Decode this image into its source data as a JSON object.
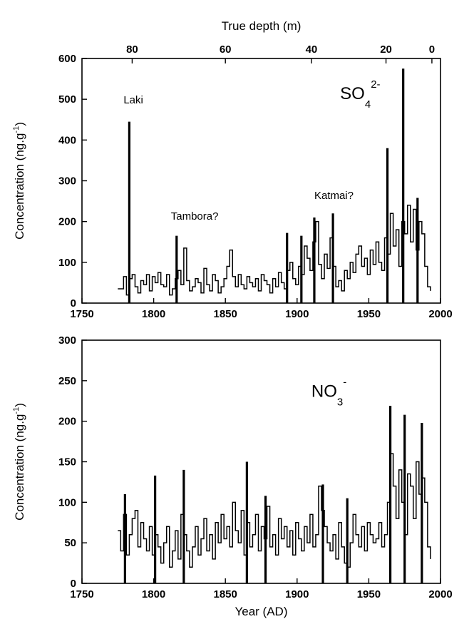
{
  "chart_data": [
    {
      "type": "line",
      "panel": "top",
      "xlim": [
        1750,
        2000
      ],
      "ylim": [
        0,
        600
      ],
      "x_ticks": [
        1750,
        1800,
        1850,
        1900,
        1950,
        2000
      ],
      "y_ticks": [
        0,
        100,
        200,
        300,
        400,
        500,
        600
      ],
      "ylabel_parts": {
        "main": "Concentration (ng.g",
        "sup": "-1",
        "end": ")"
      },
      "top_axis": {
        "title": "True depth (m)",
        "ticks": [
          {
            "label": "80",
            "year": 1785
          },
          {
            "label": "60",
            "year": 1850
          },
          {
            "label": "40",
            "year": 1910
          },
          {
            "label": "20",
            "year": 1962
          },
          {
            "label": "0",
            "year": 1994
          }
        ]
      },
      "species": {
        "main": "SO",
        "sub": "4",
        "sup": "2-"
      },
      "species_anchor": {
        "x": 1930,
        "y": 500
      },
      "annotations": [
        {
          "text": "Laki",
          "x": 1779,
          "y": 490
        },
        {
          "text": "Tambora?",
          "x": 1812,
          "y": 205
        },
        {
          "text": "Katmai?",
          "x": 1912,
          "y": 255
        }
      ],
      "spikes": [
        {
          "x": 1783,
          "y": 445
        },
        {
          "x": 1816,
          "y": 165
        },
        {
          "x": 1893,
          "y": 172
        },
        {
          "x": 1903,
          "y": 165
        },
        {
          "x": 1912,
          "y": 210
        },
        {
          "x": 1925,
          "y": 220
        },
        {
          "x": 1963,
          "y": 380
        },
        {
          "x": 1974,
          "y": 575
        },
        {
          "x": 1984,
          "y": 258
        }
      ],
      "series": [
        {
          "x": [
            1775,
            1779,
            1781,
            1783,
            1785,
            1787,
            1789,
            1791,
            1793,
            1795,
            1797,
            1799,
            1801,
            1803,
            1805,
            1807,
            1809,
            1811,
            1813,
            1815,
            1817,
            1819,
            1821,
            1823,
            1825,
            1827,
            1829,
            1831,
            1833,
            1835,
            1837,
            1839,
            1841,
            1843,
            1845,
            1847,
            1849,
            1851,
            1853,
            1855,
            1857,
            1859,
            1861,
            1863,
            1865,
            1867,
            1869,
            1871,
            1873,
            1875,
            1877,
            1879,
            1881,
            1883,
            1885,
            1887,
            1889,
            1891,
            1893,
            1895,
            1897,
            1899,
            1901,
            1903,
            1905,
            1907,
            1909,
            1911,
            1913,
            1915,
            1917,
            1919,
            1921,
            1923,
            1925,
            1927,
            1929,
            1931,
            1933,
            1935,
            1937,
            1939,
            1941,
            1943,
            1945,
            1947,
            1949,
            1951,
            1953,
            1955,
            1957,
            1959,
            1961,
            1963,
            1965,
            1967,
            1969,
            1971,
            1973,
            1975,
            1977,
            1979,
            1981,
            1983,
            1985,
            1987,
            1989,
            1991,
            1993
          ],
          "y": [
            35,
            65,
            20,
            60,
            70,
            40,
            25,
            55,
            45,
            70,
            30,
            65,
            50,
            75,
            45,
            40,
            70,
            20,
            35,
            60,
            80,
            45,
            135,
            55,
            30,
            40,
            60,
            50,
            25,
            85,
            45,
            30,
            70,
            55,
            25,
            40,
            60,
            90,
            130,
            65,
            40,
            70,
            45,
            35,
            65,
            50,
            40,
            60,
            30,
            70,
            55,
            45,
            25,
            60,
            40,
            75,
            50,
            35,
            80,
            100,
            60,
            45,
            90,
            70,
            140,
            110,
            80,
            150,
            200,
            95,
            60,
            120,
            85,
            160,
            90,
            40,
            55,
            30,
            80,
            60,
            100,
            75,
            120,
            140,
            90,
            110,
            70,
            130,
            95,
            150,
            100,
            80,
            160,
            120,
            220,
            140,
            180,
            90,
            200,
            170,
            240,
            150,
            230,
            130,
            200,
            170,
            90,
            40,
            30
          ]
        }
      ]
    },
    {
      "type": "line",
      "panel": "bottom",
      "xlim": [
        1750,
        2000
      ],
      "ylim": [
        0,
        300
      ],
      "x_ticks": [
        1750,
        1800,
        1850,
        1900,
        1950,
        2000
      ],
      "y_ticks": [
        0,
        50,
        100,
        150,
        200,
        250,
        300
      ],
      "xlabel": "Year (AD)",
      "ylabel_parts": {
        "main": "Concentration (ng.g",
        "sup": "-1",
        "end": ")"
      },
      "species": {
        "main": "NO",
        "sub": "3",
        "sup": "-"
      },
      "species_anchor": {
        "x": 1910,
        "y": 230
      },
      "spikes": [
        {
          "x": 1780,
          "y": 110
        },
        {
          "x": 1801,
          "y": 133
        },
        {
          "x": 1821,
          "y": 140
        },
        {
          "x": 1865,
          "y": 150
        },
        {
          "x": 1878,
          "y": 108
        },
        {
          "x": 1918,
          "y": 122
        },
        {
          "x": 1935,
          "y": 105
        },
        {
          "x": 1965,
          "y": 219
        },
        {
          "x": 1975,
          "y": 208
        },
        {
          "x": 1987,
          "y": 198
        }
      ],
      "series": [
        {
          "x": [
            1775,
            1777,
            1779,
            1781,
            1783,
            1785,
            1787,
            1789,
            1791,
            1793,
            1795,
            1797,
            1799,
            1801,
            1803,
            1805,
            1807,
            1809,
            1811,
            1813,
            1815,
            1817,
            1819,
            1821,
            1823,
            1825,
            1827,
            1829,
            1831,
            1833,
            1835,
            1837,
            1839,
            1841,
            1843,
            1845,
            1847,
            1849,
            1851,
            1853,
            1855,
            1857,
            1859,
            1861,
            1863,
            1865,
            1867,
            1869,
            1871,
            1873,
            1875,
            1877,
            1879,
            1881,
            1883,
            1885,
            1887,
            1889,
            1891,
            1893,
            1895,
            1897,
            1899,
            1901,
            1903,
            1905,
            1907,
            1909,
            1911,
            1913,
            1915,
            1917,
            1919,
            1921,
            1923,
            1925,
            1927,
            1929,
            1931,
            1933,
            1935,
            1937,
            1939,
            1941,
            1943,
            1945,
            1947,
            1949,
            1951,
            1953,
            1955,
            1957,
            1959,
            1961,
            1963,
            1965,
            1967,
            1969,
            1971,
            1973,
            1975,
            1977,
            1979,
            1981,
            1983,
            1985,
            1987,
            1989,
            1991,
            1993
          ],
          "y": [
            65,
            40,
            85,
            35,
            60,
            80,
            90,
            45,
            75,
            55,
            40,
            70,
            35,
            60,
            45,
            25,
            50,
            70,
            20,
            40,
            65,
            30,
            85,
            60,
            40,
            20,
            45,
            70,
            35,
            55,
            80,
            40,
            60,
            30,
            75,
            50,
            85,
            55,
            70,
            45,
            100,
            65,
            50,
            90,
            35,
            75,
            45,
            60,
            85,
            40,
            70,
            55,
            95,
            45,
            60,
            35,
            80,
            55,
            70,
            45,
            65,
            35,
            75,
            55,
            40,
            70,
            50,
            85,
            45,
            60,
            120,
            90,
            70,
            50,
            40,
            60,
            30,
            75,
            45,
            25,
            20,
            50,
            85,
            60,
            45,
            70,
            40,
            75,
            60,
            50,
            55,
            75,
            45,
            60,
            100,
            160,
            120,
            80,
            140,
            100,
            60,
            135,
            120,
            80,
            150,
            110,
            130,
            100,
            45,
            30
          ]
        }
      ]
    }
  ]
}
